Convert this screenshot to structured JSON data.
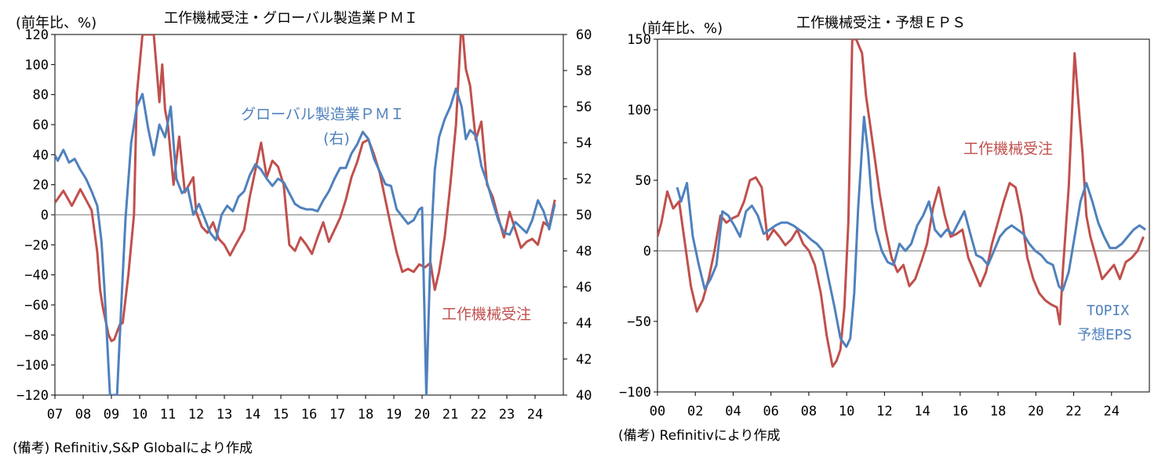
{
  "chart_data": [
    {
      "type": "line",
      "title": "工作機械受注・グローバル製造業ＰＭＩ",
      "unit_label": "(前年比、%)",
      "source": "(備考) Refinitiv,S&P Globalにより作成",
      "x_ticks": [
        "07",
        "08",
        "09",
        "10",
        "11",
        "12",
        "13",
        "14",
        "15",
        "16",
        "17",
        "18",
        "19",
        "20",
        "21",
        "22",
        "23",
        "24"
      ],
      "x_range": [
        2007.0,
        2025.0
      ],
      "ylim": [
        -120,
        120
      ],
      "y_ticks": [
        120,
        100,
        80,
        60,
        40,
        20,
        0,
        -20,
        -40,
        -60,
        -80,
        -100,
        -120
      ],
      "y2lim": [
        40,
        60
      ],
      "y2_ticks": [
        60,
        58,
        56,
        54,
        52,
        50,
        48,
        46,
        44,
        42,
        40
      ],
      "grid": false,
      "series": [
        {
          "name": "工作機械受注",
          "axis": "left",
          "color": "#c0504d",
          "x": [
            2007.0,
            2007.3,
            2007.6,
            2007.9,
            2008.1,
            2008.3,
            2008.5,
            2008.6,
            2008.7,
            2008.9,
            2009.0,
            2009.1,
            2009.3,
            2009.4,
            2009.6,
            2009.8,
            2009.9,
            2010.1,
            2010.5,
            2010.7,
            2010.8,
            2010.9,
            2011.0,
            2011.2,
            2011.4,
            2011.6,
            2011.9,
            2012.0,
            2012.2,
            2012.4,
            2012.6,
            2012.8,
            2013.0,
            2013.2,
            2013.4,
            2013.7,
            2013.9,
            2014.1,
            2014.3,
            2014.5,
            2014.7,
            2014.9,
            2015.1,
            2015.3,
            2015.5,
            2015.7,
            2015.9,
            2016.1,
            2016.3,
            2016.5,
            2016.7,
            2016.9,
            2017.1,
            2017.3,
            2017.5,
            2017.7,
            2017.9,
            2018.1,
            2018.3,
            2018.5,
            2018.7,
            2018.9,
            2019.1,
            2019.3,
            2019.5,
            2019.7,
            2019.9,
            2020.1,
            2020.3,
            2020.45,
            2020.6,
            2020.8,
            2021.0,
            2021.2,
            2021.4,
            2021.55,
            2021.7,
            2021.9,
            2022.1,
            2022.3,
            2022.5,
            2022.7,
            2022.9,
            2023.1,
            2023.3,
            2023.5,
            2023.7,
            2023.9,
            2024.1,
            2024.3,
            2024.5,
            2024.7
          ],
          "values": [
            8,
            16,
            6,
            17,
            10,
            3,
            -25,
            -50,
            -62,
            -80,
            -84,
            -83,
            -73,
            -72,
            -40,
            0,
            80,
            120,
            120,
            75,
            100,
            70,
            60,
            20,
            52,
            15,
            25,
            2,
            -8,
            -12,
            -5,
            -16,
            -20,
            -27,
            -20,
            -10,
            12,
            30,
            48,
            25,
            36,
            32,
            20,
            -20,
            -24,
            -15,
            -20,
            -26,
            -15,
            -5,
            -18,
            -10,
            -2,
            10,
            25,
            35,
            48,
            50,
            40,
            28,
            10,
            -8,
            -25,
            -38,
            -36,
            -38,
            -33,
            -35,
            -32,
            -50,
            -38,
            -15,
            20,
            60,
            130,
            97,
            86,
            50,
            62,
            20,
            12,
            -2,
            -15,
            2,
            -10,
            -22,
            -18,
            -16,
            -20,
            -5,
            -8,
            10
          ]
        },
        {
          "name": "グローバル製造業ＰＭＩ（右）",
          "axis": "right",
          "color": "#4f81bd",
          "x": [
            2007.0,
            2007.1,
            2007.3,
            2007.5,
            2007.7,
            2007.9,
            2008.1,
            2008.3,
            2008.5,
            2008.65,
            2008.75,
            2008.85,
            2008.95,
            2009.05,
            2009.2,
            2009.35,
            2009.5,
            2009.7,
            2009.9,
            2010.1,
            2010.3,
            2010.5,
            2010.7,
            2010.9,
            2011.1,
            2011.3,
            2011.5,
            2011.7,
            2011.9,
            2012.1,
            2012.3,
            2012.5,
            2012.7,
            2012.9,
            2013.1,
            2013.3,
            2013.5,
            2013.7,
            2013.9,
            2014.1,
            2014.3,
            2014.5,
            2014.7,
            2014.9,
            2015.1,
            2015.3,
            2015.5,
            2015.7,
            2015.9,
            2016.1,
            2016.3,
            2016.5,
            2016.7,
            2016.9,
            2017.1,
            2017.3,
            2017.5,
            2017.7,
            2017.9,
            2018.1,
            2018.3,
            2018.5,
            2018.7,
            2018.9,
            2019.1,
            2019.3,
            2019.5,
            2019.7,
            2019.9,
            2020.0,
            2020.15,
            2020.3,
            2020.45,
            2020.6,
            2020.8,
            2021.0,
            2021.2,
            2021.4,
            2021.55,
            2021.7,
            2021.9,
            2022.1,
            2022.3,
            2022.5,
            2022.7,
            2022.9,
            2023.1,
            2023.3,
            2023.5,
            2023.7,
            2023.9,
            2024.1,
            2024.3,
            2024.5,
            2024.7
          ],
          "values": [
            53.3,
            53.0,
            53.6,
            52.9,
            53.1,
            52.5,
            52.0,
            51.3,
            50.5,
            48.5,
            46.0,
            43.0,
            40.0,
            40.0,
            40.0,
            45.0,
            49.8,
            54.0,
            56.0,
            56.7,
            54.8,
            53.3,
            55.0,
            54.3,
            56.0,
            52.0,
            51.2,
            51.5,
            50.0,
            50.6,
            49.8,
            49.0,
            48.6,
            50.0,
            50.5,
            50.2,
            51.0,
            51.3,
            52.2,
            52.8,
            52.5,
            52.0,
            51.6,
            52.0,
            51.8,
            51.2,
            50.6,
            50.4,
            50.3,
            50.3,
            50.2,
            50.8,
            51.3,
            52.0,
            52.6,
            52.6,
            53.4,
            53.9,
            54.6,
            54.2,
            53.1,
            52.4,
            51.7,
            51.6,
            50.3,
            49.9,
            49.5,
            49.7,
            50.3,
            50.4,
            40.0,
            48.0,
            52.5,
            54.3,
            55.3,
            56.0,
            57.0,
            56.0,
            54.2,
            54.7,
            54.4,
            52.7,
            51.8,
            50.7,
            49.7,
            49.0,
            48.9,
            49.6,
            49.3,
            49.0,
            49.7,
            50.8,
            50.2,
            49.2,
            50.6
          ]
        }
      ],
      "annotations": [
        {
          "text": "グローバル製造業ＰＭＩ",
          "color": "#4f81bd"
        },
        {
          "text": "(右)",
          "color": "#4f81bd"
        },
        {
          "text": "工作機械受注",
          "color": "#c0504d"
        }
      ]
    },
    {
      "type": "line",
      "title": "工作機械受注・予想ＥＰＳ",
      "unit_label": "(前年比、%)",
      "source": "(備考) Refinitivにより作成",
      "x_ticks": [
        "00",
        "02",
        "04",
        "06",
        "08",
        "10",
        "12",
        "14",
        "16",
        "18",
        "20",
        "22",
        "24"
      ],
      "x_range": [
        2000.0,
        2025.0
      ],
      "ylim": [
        -100,
        150
      ],
      "y_ticks": [
        150,
        100,
        50,
        0,
        -50,
        -100
      ],
      "grid": false,
      "series": [
        {
          "name": "工作機械受注",
          "color": "#c0504d",
          "x": [
            2000.0,
            2000.2,
            2000.5,
            2000.8,
            2001.1,
            2001.4,
            2001.7,
            2002.0,
            2002.3,
            2002.6,
            2002.9,
            2003.2,
            2003.5,
            2003.8,
            2004.1,
            2004.4,
            2004.7,
            2005.0,
            2005.3,
            2005.6,
            2005.9,
            2006.2,
            2006.5,
            2006.8,
            2007.1,
            2007.4,
            2007.7,
            2008.0,
            2008.3,
            2008.6,
            2008.9,
            2009.1,
            2009.3,
            2009.5,
            2009.7,
            2009.9,
            2010.1,
            2010.4,
            2010.6,
            2010.8,
            2011.0,
            2011.3,
            2011.6,
            2011.9,
            2012.2,
            2012.5,
            2012.8,
            2013.1,
            2013.4,
            2013.7,
            2014.0,
            2014.3,
            2014.6,
            2014.9,
            2015.2,
            2015.5,
            2015.8,
            2016.1,
            2016.4,
            2016.7,
            2017.0,
            2017.3,
            2017.6,
            2017.9,
            2018.2,
            2018.5,
            2018.8,
            2019.1,
            2019.4,
            2019.7,
            2020.0,
            2020.3,
            2020.45,
            2020.6,
            2020.9,
            2021.2,
            2021.45,
            2021.6,
            2021.8,
            2022.0,
            2022.3,
            2022.6,
            2022.9,
            2023.2,
            2023.5,
            2023.8,
            2024.1,
            2024.4,
            2024.7
          ],
          "values": [
            10,
            20,
            42,
            30,
            35,
            5,
            -25,
            -43,
            -35,
            -20,
            0,
            25,
            20,
            23,
            25,
            35,
            50,
            52,
            45,
            8,
            15,
            10,
            4,
            8,
            15,
            5,
            0,
            -10,
            -30,
            -60,
            -82,
            -78,
            -70,
            -40,
            20,
            150,
            150,
            140,
            110,
            90,
            70,
            40,
            15,
            -5,
            -15,
            -10,
            -25,
            -20,
            -8,
            5,
            30,
            45,
            25,
            10,
            12,
            15,
            -5,
            -15,
            -25,
            -15,
            5,
            20,
            35,
            48,
            45,
            25,
            -5,
            -20,
            -30,
            -35,
            -38,
            -40,
            -52,
            -15,
            45,
            140,
            95,
            70,
            25,
            10,
            -5,
            -20,
            -15,
            -10,
            -20,
            -8,
            -5,
            0,
            10
          ]
        },
        {
          "name": "TOPIX\n予想EPS",
          "color": "#4f81bd",
          "x": [
            2001.0,
            2001.2,
            2001.5,
            2001.8,
            2002.1,
            2002.4,
            2002.7,
            2003.0,
            2003.3,
            2003.6,
            2003.9,
            2004.2,
            2004.5,
            2004.8,
            2005.1,
            2005.4,
            2005.7,
            2006.0,
            2006.3,
            2006.6,
            2006.9,
            2007.2,
            2007.5,
            2007.8,
            2008.1,
            2008.4,
            2008.7,
            2009.0,
            2009.3,
            2009.6,
            2009.8,
            2010.0,
            2010.2,
            2010.5,
            2010.7,
            2010.9,
            2011.1,
            2011.4,
            2011.7,
            2012.0,
            2012.3,
            2012.6,
            2012.9,
            2013.2,
            2013.5,
            2013.8,
            2014.1,
            2014.4,
            2014.7,
            2015.0,
            2015.3,
            2015.6,
            2015.9,
            2016.2,
            2016.5,
            2016.8,
            2017.1,
            2017.4,
            2017.7,
            2018.0,
            2018.3,
            2018.6,
            2018.9,
            2019.2,
            2019.5,
            2019.8,
            2020.1,
            2020.4,
            2020.6,
            2020.9,
            2021.2,
            2021.5,
            2021.8,
            2022.1,
            2022.4,
            2022.7,
            2023.0,
            2023.3,
            2023.6,
            2023.9,
            2024.2,
            2024.5,
            2024.8
          ],
          "values": [
            45,
            35,
            48,
            10,
            -10,
            -27,
            -20,
            -10,
            28,
            25,
            18,
            10,
            28,
            32,
            25,
            12,
            15,
            18,
            20,
            20,
            18,
            15,
            12,
            8,
            5,
            0,
            -20,
            -40,
            -62,
            -68,
            -62,
            -30,
            30,
            95,
            70,
            35,
            15,
            0,
            -8,
            -10,
            5,
            0,
            5,
            18,
            25,
            35,
            15,
            10,
            15,
            12,
            20,
            28,
            12,
            -3,
            -5,
            -10,
            0,
            10,
            15,
            18,
            15,
            12,
            5,
            0,
            -3,
            -8,
            -10,
            -25,
            -28,
            -15,
            10,
            35,
            48,
            35,
            20,
            10,
            2,
            2,
            5,
            10,
            15,
            18,
            15
          ]
        }
      ],
      "annotations": [
        {
          "text": "工作機械受注",
          "color": "#c0504d"
        },
        {
          "text": "TOPIX",
          "color": "#4f81bd"
        },
        {
          "text": "予想EPS",
          "color": "#4f81bd"
        }
      ]
    }
  ]
}
